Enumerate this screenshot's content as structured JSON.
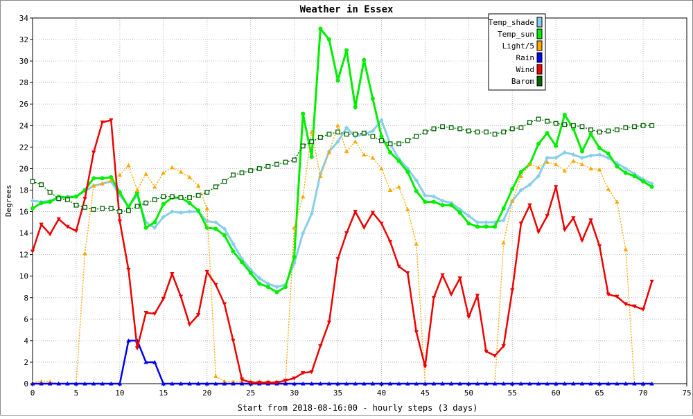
{
  "chart_data": {
    "type": "line",
    "title": "Weather in Essex",
    "xlabel": "Start from 2018-08-16:00 - hourly steps (3 days)",
    "ylabel": "Degrees",
    "xlim": [
      0,
      75
    ],
    "ylim": [
      0,
      34
    ],
    "x_ticks": [
      0,
      5,
      10,
      15,
      20,
      25,
      30,
      35,
      40,
      45,
      50,
      55,
      60,
      65,
      70,
      75
    ],
    "y_ticks": [
      0,
      2,
      4,
      6,
      8,
      10,
      12,
      14,
      16,
      18,
      20,
      22,
      24,
      26,
      28,
      30,
      32,
      34
    ],
    "grid": true,
    "legend_position": "top-right",
    "series": [
      {
        "name": "Temp_shade",
        "color": "#87ceeb",
        "marker": "diamond",
        "values": [
          17.0,
          16.9,
          17.0,
          17.2,
          17.4,
          17.4,
          17.9,
          18.4,
          18.6,
          18.8,
          17.5,
          16.5,
          17.5,
          15.0,
          14.5,
          15.5,
          16.0,
          15.9,
          16.0,
          16.0,
          15.1,
          15.0,
          14.4,
          13.0,
          11.6,
          10.6,
          9.8,
          9.3,
          9.0,
          9.2,
          11.2,
          14.0,
          15.8,
          19.5,
          21.6,
          22.5,
          23.8,
          23.0,
          23.2,
          23.5,
          24.5,
          22.3,
          20.9,
          20.0,
          18.9,
          17.5,
          17.4,
          17.0,
          16.8,
          16.2,
          15.6,
          15.0,
          15.0,
          15.0,
          15.2,
          17.0,
          18.0,
          18.5,
          19.3,
          21.0,
          21.0,
          21.5,
          21.3,
          21.0,
          21.2,
          21.3,
          21.0,
          20.5,
          20.0,
          19.5,
          19.0,
          18.6
        ]
      },
      {
        "name": "Temp_sun",
        "color": "#00ee00",
        "marker": "circle",
        "values": [
          16.3,
          16.8,
          16.9,
          17.4,
          17.3,
          17.4,
          18.0,
          19.1,
          19.1,
          19.2,
          17.8,
          16.4,
          17.8,
          14.5,
          15.0,
          16.7,
          17.3,
          17.3,
          16.8,
          16.1,
          14.5,
          14.4,
          13.8,
          12.3,
          11.3,
          10.3,
          9.3,
          9.0,
          8.5,
          9.0,
          11.8,
          25.1,
          21.1,
          33.0,
          32.0,
          28.2,
          31.0,
          25.7,
          30.1,
          26.5,
          23.0,
          21.5,
          20.7,
          19.7,
          17.9,
          16.9,
          16.9,
          16.6,
          16.6,
          15.9,
          14.9,
          14.6,
          14.6,
          14.6,
          16.3,
          18.1,
          19.7,
          20.4,
          22.3,
          23.3,
          22.1,
          25.0,
          23.7,
          21.6,
          23.2,
          21.9,
          21.4,
          20.2,
          19.6,
          19.3,
          18.8,
          18.3
        ]
      },
      {
        "name": "Light/5",
        "color": "#ffa500",
        "marker": "triangle-up",
        "values": [
          0.1,
          0.2,
          0.2,
          0.0,
          0.0,
          0.0,
          12.1,
          18.4,
          18.6,
          18.9,
          19.4,
          20.3,
          18.0,
          19.5,
          18.3,
          19.6,
          20.1,
          19.7,
          19.2,
          18.4,
          16.3,
          0.7,
          0.2,
          0.2,
          0.2,
          0.2,
          0.2,
          0.2,
          0.2,
          0.2,
          14.5,
          17.4,
          23.4,
          19.3,
          21.5,
          24.0,
          21.6,
          22.5,
          21.3,
          21.0,
          20.0,
          18.0,
          18.3,
          16.2,
          13.0,
          0.0,
          0.0,
          0.0,
          0.0,
          0.0,
          0.0,
          0.0,
          0.0,
          0.0,
          13.1,
          17.0,
          19.3,
          20.4,
          20.1,
          20.6,
          20.4,
          19.8,
          20.7,
          20.4,
          20.0,
          19.9,
          18.1,
          16.9,
          12.5,
          0.0,
          0.0,
          0.0
        ]
      },
      {
        "name": "Rain",
        "color": "#0000ee",
        "marker": "triangle-up",
        "values": [
          0.0,
          0.0,
          0.0,
          0.0,
          0.0,
          0.0,
          0.0,
          0.0,
          0.0,
          0.0,
          0.0,
          4.0,
          4.0,
          2.0,
          2.0,
          0.0,
          0.0,
          0.0,
          0.0,
          0.0,
          0.0,
          0.0,
          0.0,
          0.0,
          0.0,
          0.0,
          0.0,
          0.0,
          0.0,
          0.0,
          0.0,
          0.0,
          0.0,
          0.0,
          0.0,
          0.0,
          0.0,
          0.0,
          0.0,
          0.0,
          0.0,
          0.0,
          0.0,
          0.0,
          0.0,
          0.0,
          0.0,
          0.0,
          0.0,
          0.0,
          0.0,
          0.0,
          0.0,
          0.0,
          0.0,
          0.0,
          0.0,
          0.0,
          0.0,
          0.0,
          0.0,
          0.0,
          0.0,
          0.0,
          0.0,
          0.0,
          0.0,
          0.0,
          0.0,
          0.0,
          0.0,
          0.0
        ]
      },
      {
        "name": "Wind",
        "color": "#ee0000",
        "marker": "triangle-down",
        "values": [
          12.3,
          14.8,
          13.9,
          15.3,
          14.6,
          14.2,
          17.2,
          21.5,
          24.3,
          24.5,
          15.1,
          10.6,
          3.3,
          6.6,
          6.5,
          7.9,
          10.2,
          8.1,
          5.5,
          6.4,
          10.4,
          9.2,
          7.4,
          4.0,
          0.4,
          0.1,
          0.1,
          0.1,
          0.1,
          0.3,
          0.5,
          1.0,
          1.1,
          3.5,
          5.7,
          11.6,
          14.0,
          16.0,
          14.5,
          15.9,
          14.9,
          13.2,
          10.9,
          10.3,
          4.8,
          1.6,
          8.0,
          10.1,
          8.3,
          9.8,
          6.2,
          8.2,
          3.0,
          2.6,
          3.5,
          8.7,
          14.9,
          16.6,
          14.1,
          15.6,
          18.3,
          14.3,
          15.4,
          13.3,
          15.2,
          12.8,
          8.3,
          8.1,
          7.4,
          7.2,
          6.9,
          9.5
        ]
      },
      {
        "name": "Barom",
        "color": "#006400",
        "marker": "square",
        "values": [
          18.8,
          18.5,
          17.8,
          17.2,
          17.1,
          16.6,
          16.4,
          16.2,
          16.3,
          16.3,
          16.0,
          16.1,
          16.5,
          16.8,
          17.1,
          17.4,
          17.4,
          17.3,
          17.3,
          17.5,
          17.8,
          18.3,
          18.8,
          19.4,
          19.6,
          19.8,
          20.0,
          20.2,
          20.4,
          20.6,
          20.8,
          22.1,
          22.5,
          22.9,
          23.2,
          23.4,
          23.2,
          23.2,
          23.3,
          23.0,
          22.6,
          22.3,
          22.3,
          22.6,
          23.0,
          23.4,
          23.7,
          23.9,
          23.8,
          23.7,
          23.5,
          23.4,
          23.4,
          23.2,
          23.4,
          23.7,
          23.8,
          24.3,
          24.6,
          24.4,
          24.2,
          24.1,
          24.0,
          23.9,
          23.6,
          23.4,
          23.5,
          23.6,
          23.8,
          23.9,
          24.0,
          24.0
        ]
      }
    ]
  }
}
